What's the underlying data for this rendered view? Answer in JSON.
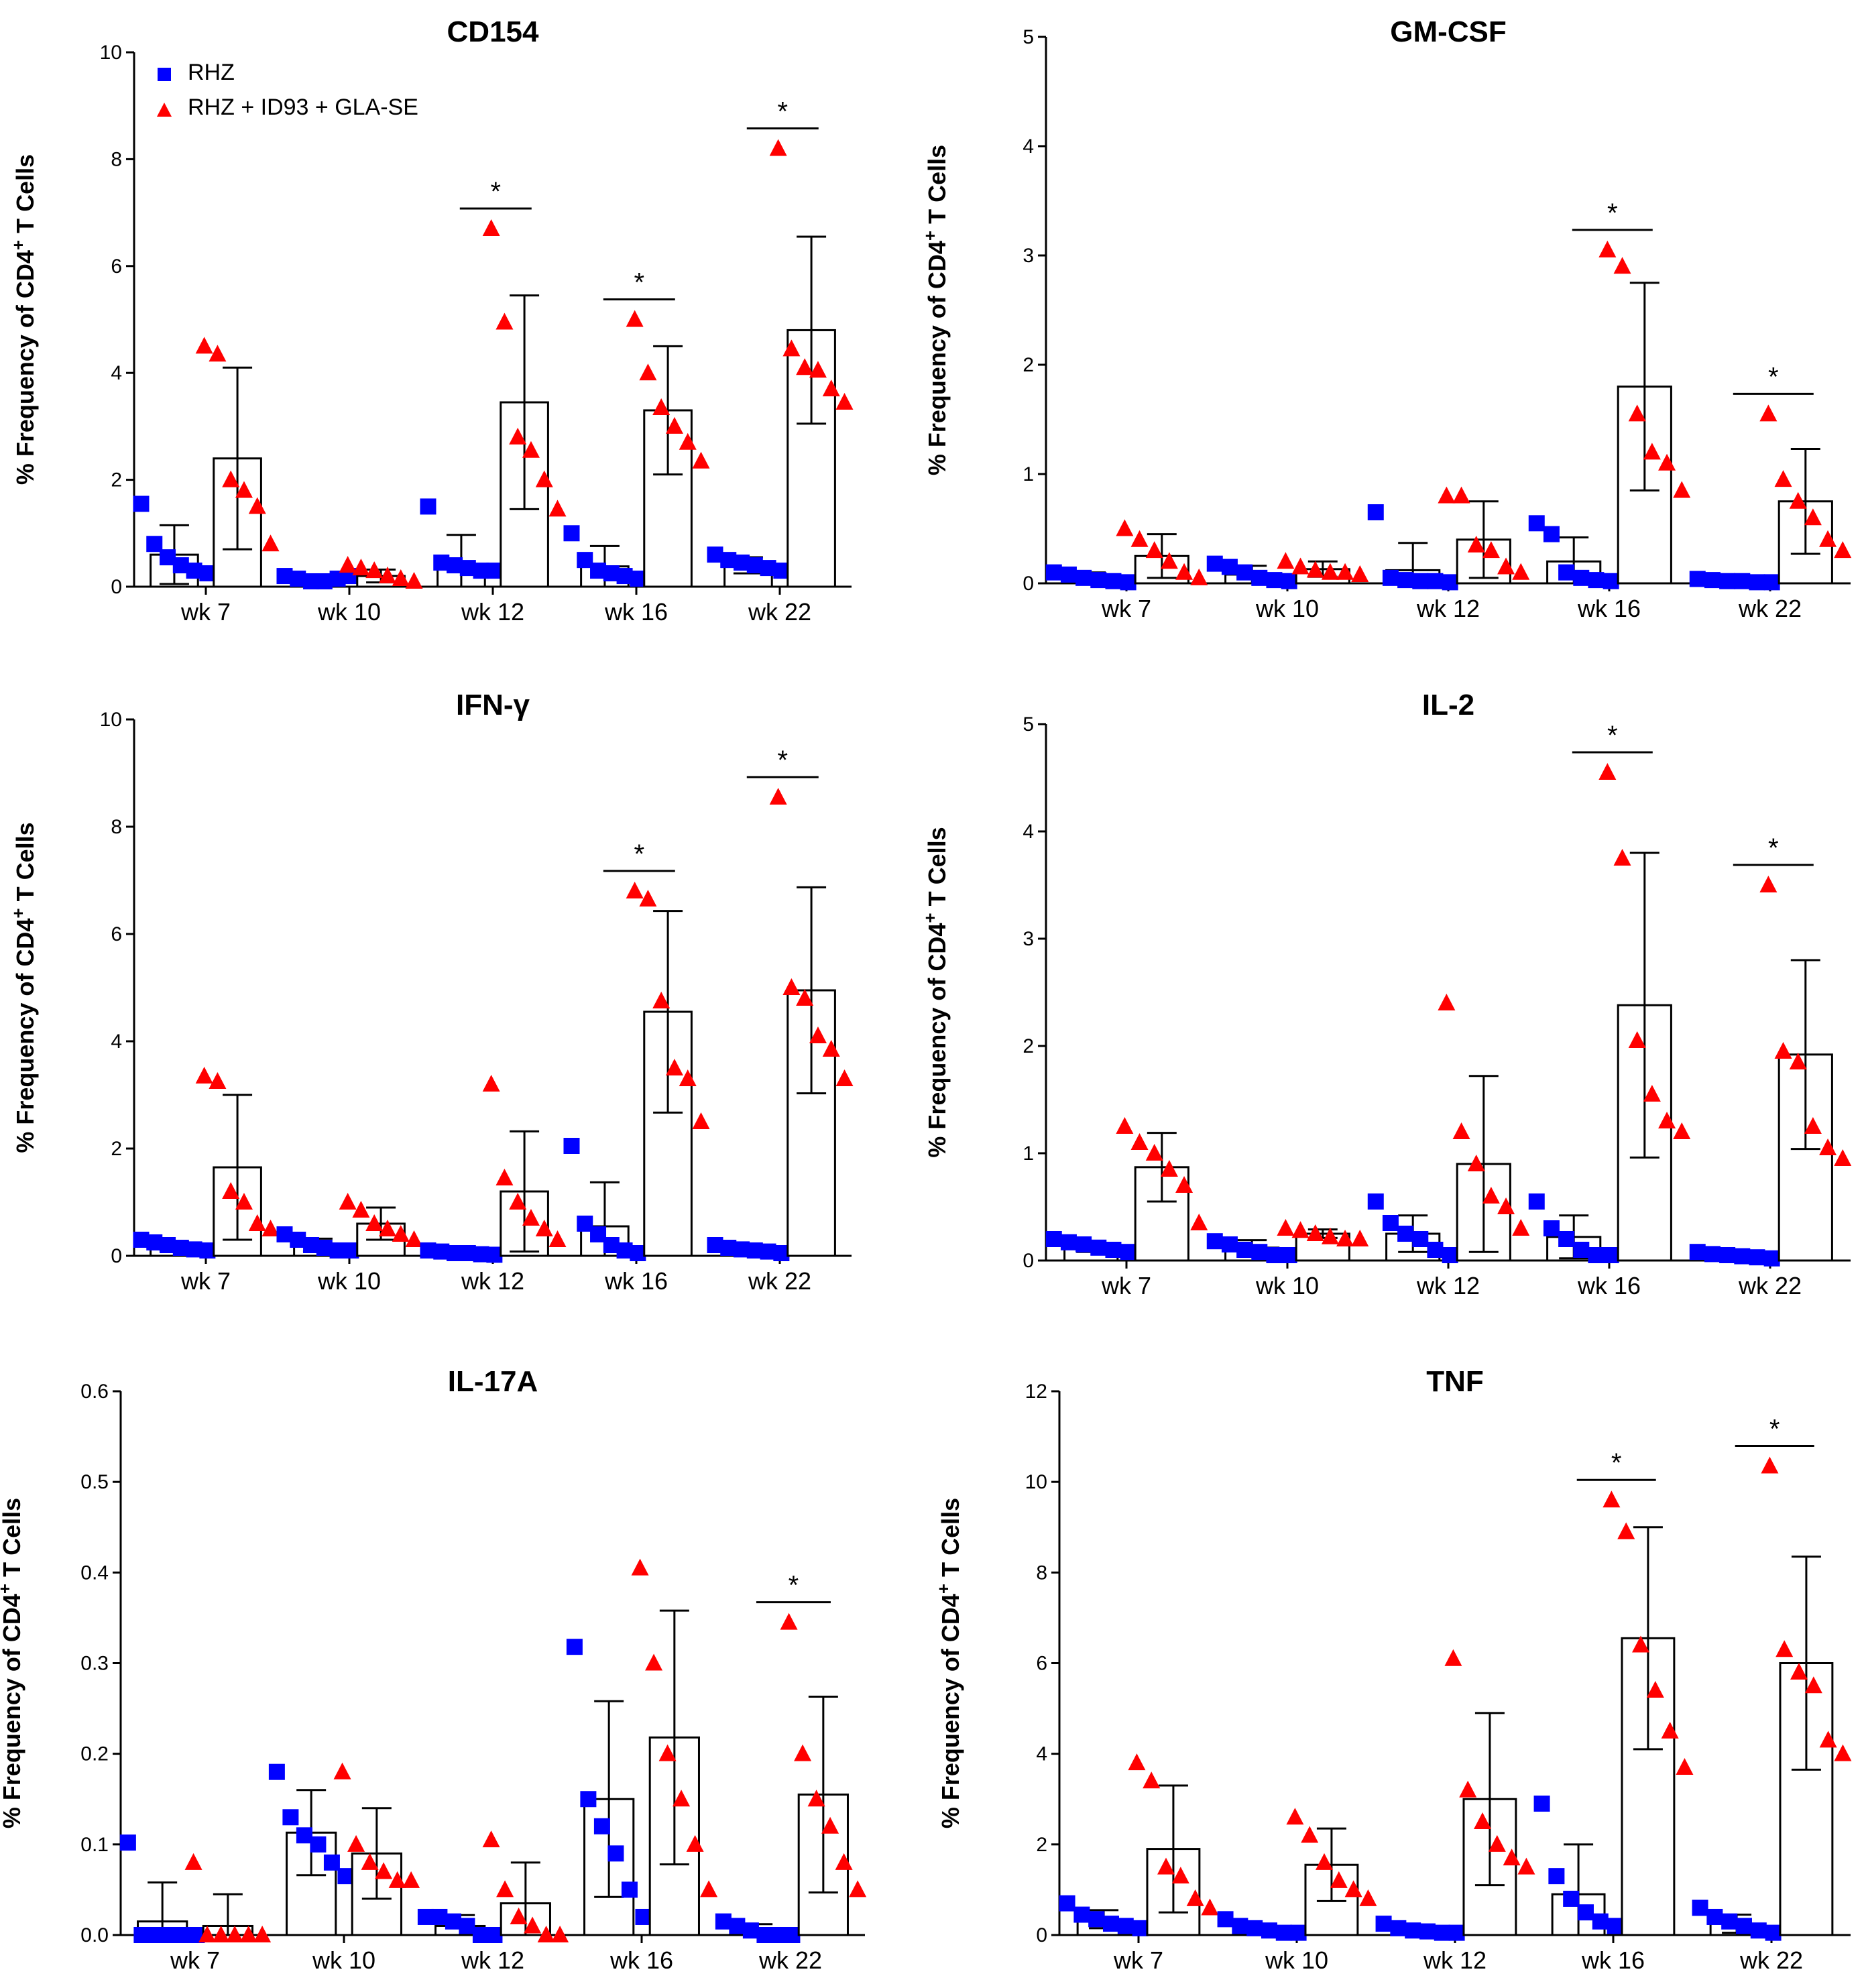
{
  "legend": {
    "group_a": "RHZ",
    "group_b": "RHZ + ID93 + GLA-SE",
    "color_a": "#0000ff",
    "color_b": "#ff0000"
  },
  "y_label_prefix": "% Frequency of CD4",
  "y_label_superscript": "+",
  "y_label_suffix": " T  Cells",
  "significance_marker": "*",
  "chart_data": [
    {
      "type": "bar",
      "title": "CD154",
      "categories": [
        "wk 7",
        "wk 10",
        "wk 12",
        "wk 16",
        "wk 22"
      ],
      "ylim": [
        0,
        10
      ],
      "ytick_labels": [
        "0",
        "2",
        "4",
        "6",
        "8",
        "10"
      ],
      "ylabel": "% Frequency of CD4+ T Cells",
      "show_legend": true,
      "series": [
        {
          "name": "RHZ",
          "marker": "square",
          "means": [
            0.6,
            0.15,
            0.42,
            0.38,
            0.4
          ],
          "sd": [
            0.55,
            0.08,
            0.55,
            0.38,
            0.15
          ],
          "points": [
            [
              1.55,
              0.8,
              0.55,
              0.4,
              0.3,
              0.25
            ],
            [
              0.2,
              0.15,
              0.1,
              0.1,
              0.15,
              0.2
            ],
            [
              1.5,
              0.45,
              0.4,
              0.35,
              0.3,
              0.3
            ],
            [
              1.0,
              0.5,
              0.3,
              0.25,
              0.2,
              0.15
            ],
            [
              0.6,
              0.5,
              0.45,
              0.4,
              0.35,
              0.3
            ]
          ]
        },
        {
          "name": "RHZ + ID93 + GLA-SE",
          "marker": "triangle",
          "means": [
            2.4,
            0.2,
            3.45,
            3.3,
            4.8
          ],
          "sd": [
            1.7,
            0.12,
            2.0,
            1.2,
            1.75
          ],
          "points": [
            [
              4.5,
              4.35,
              2.0,
              1.8,
              1.5,
              0.8
            ],
            [
              0.4,
              0.35,
              0.3,
              0.2,
              0.15,
              0.1
            ],
            [
              6.7,
              4.95,
              2.8,
              2.55,
              2.0,
              1.45
            ],
            [
              5.0,
              4.0,
              3.35,
              3.0,
              2.7,
              2.35
            ],
            [
              8.2,
              4.45,
              4.1,
              4.05,
              3.7,
              3.45
            ]
          ]
        }
      ],
      "significance": [
        false,
        false,
        true,
        true,
        true
      ]
    },
    {
      "type": "bar",
      "title": "GM-CSF",
      "categories": [
        "wk 7",
        "wk 10",
        "wk 12",
        "wk 16",
        "wk 22"
      ],
      "ylim": [
        0,
        5
      ],
      "ytick_labels": [
        "0",
        "1",
        "2",
        "3",
        "4",
        "5"
      ],
      "ylabel": "% Frequency of CD4+ T Cells",
      "show_legend": false,
      "series": [
        {
          "name": "RHZ",
          "marker": "square",
          "means": [
            0.05,
            0.08,
            0.12,
            0.2,
            0.02
          ],
          "sd": [
            0.05,
            0.08,
            0.25,
            0.22,
            0.02
          ],
          "points": [
            [
              0.1,
              0.08,
              0.05,
              0.03,
              0.02,
              0.01
            ],
            [
              0.18,
              0.15,
              0.1,
              0.05,
              0.03,
              0.02
            ],
            [
              0.65,
              0.05,
              0.03,
              0.02,
              0.02,
              0.01
            ],
            [
              0.55,
              0.45,
              0.1,
              0.05,
              0.03,
              0.02
            ],
            [
              0.04,
              0.03,
              0.02,
              0.02,
              0.01,
              0.01
            ]
          ]
        },
        {
          "name": "RHZ + ID93 + GLA-SE",
          "marker": "triangle",
          "means": [
            0.25,
            0.13,
            0.4,
            1.8,
            0.75
          ],
          "sd": [
            0.2,
            0.07,
            0.35,
            0.95,
            0.48
          ],
          "points": [
            [
              0.5,
              0.4,
              0.3,
              0.2,
              0.1,
              0.05
            ],
            [
              0.2,
              0.15,
              0.12,
              0.1,
              0.1,
              0.08
            ],
            [
              0.8,
              0.8,
              0.35,
              0.3,
              0.15,
              0.1
            ],
            [
              3.05,
              2.9,
              1.55,
              1.2,
              1.1,
              0.85
            ],
            [
              1.55,
              0.95,
              0.75,
              0.6,
              0.4,
              0.3
            ]
          ]
        }
      ],
      "significance": [
        false,
        false,
        false,
        true,
        true
      ]
    },
    {
      "type": "bar",
      "title": "IFN-γ",
      "categories": [
        "wk 7",
        "wk 10",
        "wk 12",
        "wk 16",
        "wk 22"
      ],
      "ylim": [
        0,
        10
      ],
      "ytick_labels": [
        "0",
        "2",
        "4",
        "6",
        "8",
        "10"
      ],
      "ylabel": "% Frequency of CD4+ T Cells",
      "show_legend": false,
      "series": [
        {
          "name": "RHZ",
          "marker": "square",
          "means": [
            0.18,
            0.2,
            0.05,
            0.55,
            0.12
          ],
          "sd": [
            0.08,
            0.12,
            0.05,
            0.82,
            0.05
          ],
          "points": [
            [
              0.3,
              0.25,
              0.2,
              0.15,
              0.12,
              0.1
            ],
            [
              0.4,
              0.3,
              0.2,
              0.15,
              0.1,
              0.1
            ],
            [
              0.1,
              0.08,
              0.05,
              0.05,
              0.03,
              0.02
            ],
            [
              2.05,
              0.6,
              0.4,
              0.2,
              0.1,
              0.05
            ],
            [
              0.2,
              0.15,
              0.12,
              0.1,
              0.08,
              0.05
            ]
          ]
        },
        {
          "name": "RHZ + ID93 + GLA-SE",
          "marker": "triangle",
          "means": [
            1.65,
            0.6,
            1.2,
            4.55,
            4.95
          ],
          "sd": [
            1.35,
            0.3,
            1.12,
            1.88,
            1.92
          ],
          "points": [
            [
              3.35,
              3.25,
              1.2,
              1.0,
              0.6,
              0.5
            ],
            [
              1.0,
              0.85,
              0.6,
              0.5,
              0.4,
              0.3
            ],
            [
              3.2,
              1.45,
              1.0,
              0.7,
              0.5,
              0.3
            ],
            [
              6.8,
              6.65,
              4.75,
              3.5,
              3.3,
              2.5
            ],
            [
              8.55,
              5.0,
              4.8,
              4.1,
              3.85,
              3.3
            ]
          ]
        }
      ],
      "significance": [
        false,
        false,
        false,
        true,
        true
      ]
    },
    {
      "type": "bar",
      "title": "IL-2",
      "categories": [
        "wk 7",
        "wk 10",
        "wk 12",
        "wk 16",
        "wk 22"
      ],
      "ylim": [
        0,
        5
      ],
      "ytick_labels": [
        "0",
        "1",
        "2",
        "3",
        "4",
        "5"
      ],
      "ylabel": "% Frequency of CD4+ T Cells",
      "show_legend": false,
      "series": [
        {
          "name": "RHZ",
          "marker": "square",
          "means": [
            0.13,
            0.12,
            0.25,
            0.22,
            0.05
          ],
          "sd": [
            0.05,
            0.07,
            0.17,
            0.2,
            0.03
          ],
          "points": [
            [
              0.2,
              0.17,
              0.15,
              0.12,
              0.1,
              0.08
            ],
            [
              0.18,
              0.15,
              0.1,
              0.08,
              0.05,
              0.05
            ],
            [
              0.55,
              0.35,
              0.25,
              0.2,
              0.1,
              0.05
            ],
            [
              0.55,
              0.3,
              0.2,
              0.1,
              0.05,
              0.05
            ],
            [
              0.08,
              0.06,
              0.05,
              0.04,
              0.03,
              0.02
            ]
          ]
        },
        {
          "name": "RHZ + ID93 + GLA-SE",
          "marker": "triangle",
          "means": [
            0.87,
            0.25,
            0.9,
            2.38,
            1.92
          ],
          "sd": [
            0.32,
            0.04,
            0.82,
            1.42,
            0.88
          ],
          "points": [
            [
              1.25,
              1.1,
              1.0,
              0.85,
              0.7,
              0.35
            ],
            [
              0.3,
              0.28,
              0.25,
              0.22,
              0.2,
              0.2
            ],
            [
              2.4,
              1.2,
              0.9,
              0.6,
              0.5,
              0.3
            ],
            [
              4.55,
              3.75,
              2.05,
              1.55,
              1.3,
              1.2
            ],
            [
              3.5,
              1.95,
              1.85,
              1.25,
              1.05,
              0.95
            ]
          ]
        }
      ],
      "significance": [
        false,
        false,
        false,
        true,
        true
      ]
    },
    {
      "type": "bar",
      "title": "IL-17A",
      "categories": [
        "wk 7",
        "wk 10",
        "wk 12",
        "wk 16",
        "wk 22"
      ],
      "ylim": [
        0,
        0.6
      ],
      "ytick_labels": [
        "0.0",
        "0.1",
        "0.2",
        "0.3",
        "0.4",
        "0.5",
        "0.6"
      ],
      "ylabel": "% Frequency of CD4+ T Cells",
      "show_legend": false,
      "series": [
        {
          "name": "RHZ",
          "marker": "square",
          "means": [
            0.015,
            0.113,
            0.01,
            0.15,
            0.005
          ],
          "sd": [
            0.043,
            0.047,
            0.012,
            0.108,
            0.007
          ],
          "points": [
            [
              0.102,
              0.0,
              0.0,
              0.0,
              0.0,
              0.0
            ],
            [
              0.18,
              0.13,
              0.11,
              0.1,
              0.08,
              0.065
            ],
            [
              0.02,
              0.02,
              0.015,
              0.01,
              0.0,
              0.0
            ],
            [
              0.318,
              0.15,
              0.12,
              0.09,
              0.05,
              0.02
            ],
            [
              0.015,
              0.01,
              0.005,
              0.0,
              0.0,
              0.0
            ]
          ]
        },
        {
          "name": "RHZ + ID93 + GLA-SE",
          "marker": "triangle",
          "means": [
            0.01,
            0.09,
            0.035,
            0.218,
            0.155
          ],
          "sd": [
            0.035,
            0.05,
            0.045,
            0.14,
            0.108
          ],
          "points": [
            [
              0.08,
              0.0,
              0.0,
              0.0,
              0.0,
              0.0
            ],
            [
              0.18,
              0.1,
              0.08,
              0.07,
              0.06,
              0.06
            ],
            [
              0.105,
              0.05,
              0.02,
              0.01,
              0.0,
              0.0
            ],
            [
              0.405,
              0.3,
              0.2,
              0.15,
              0.1,
              0.05
            ],
            [
              0.345,
              0.2,
              0.15,
              0.12,
              0.08,
              0.05
            ]
          ]
        }
      ],
      "significance": [
        false,
        false,
        false,
        false,
        true
      ]
    },
    {
      "type": "bar",
      "title": "TNF",
      "categories": [
        "wk 7",
        "wk 10",
        "wk 12",
        "wk 16",
        "wk 22"
      ],
      "ylim": [
        0,
        12
      ],
      "ytick_labels": [
        "0",
        "2",
        "4",
        "6",
        "8",
        "10",
        "12"
      ],
      "ylabel": "% Frequency of CD4+ T Cells",
      "show_legend": false,
      "series": [
        {
          "name": "RHZ",
          "marker": "square",
          "means": [
            0.35,
            0.15,
            0.12,
            0.9,
            0.25
          ],
          "sd": [
            0.2,
            0.1,
            0.08,
            1.1,
            0.2
          ],
          "points": [
            [
              0.7,
              0.45,
              0.35,
              0.25,
              0.2,
              0.15
            ],
            [
              0.35,
              0.2,
              0.15,
              0.1,
              0.05,
              0.05
            ],
            [
              0.25,
              0.15,
              0.1,
              0.08,
              0.05,
              0.05
            ],
            [
              2.9,
              1.3,
              0.8,
              0.5,
              0.3,
              0.2
            ],
            [
              0.6,
              0.4,
              0.3,
              0.2,
              0.1,
              0.05
            ]
          ]
        },
        {
          "name": "RHZ + ID93 + GLA-SE",
          "marker": "triangle",
          "means": [
            1.9,
            1.55,
            3.0,
            6.55,
            6.0
          ],
          "sd": [
            1.4,
            0.8,
            1.9,
            2.45,
            2.35
          ],
          "points": [
            [
              3.8,
              3.4,
              1.5,
              1.3,
              0.8,
              0.6
            ],
            [
              2.6,
              2.2,
              1.6,
              1.2,
              1.0,
              0.8
            ],
            [
              6.1,
              3.2,
              2.5,
              2.0,
              1.7,
              1.5
            ],
            [
              9.6,
              8.9,
              6.4,
              5.4,
              4.5,
              3.7
            ],
            [
              10.35,
              6.3,
              5.8,
              5.5,
              4.3,
              4.0
            ]
          ]
        }
      ],
      "significance": [
        false,
        false,
        false,
        true,
        true
      ]
    }
  ]
}
